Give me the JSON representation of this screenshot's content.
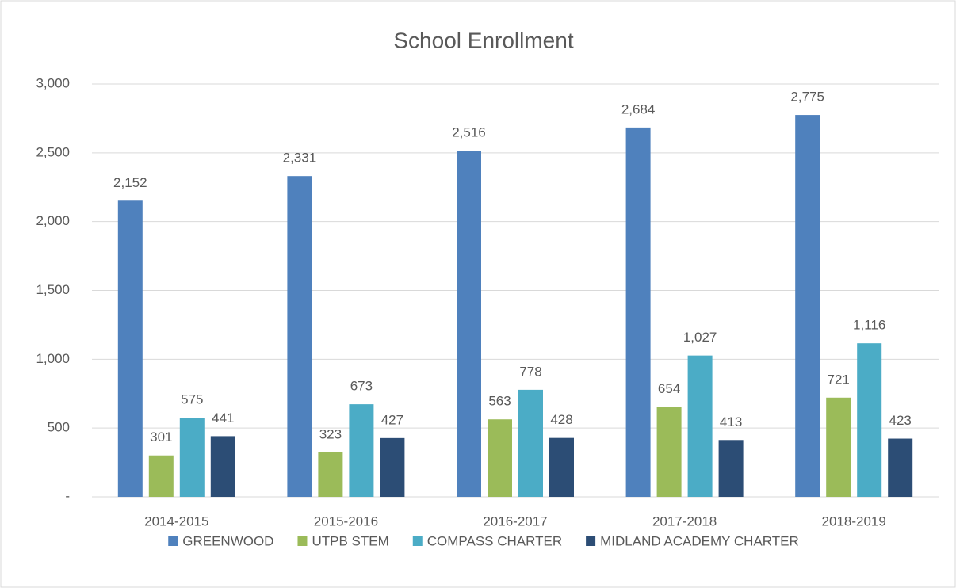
{
  "chart_data": {
    "type": "bar",
    "title": "School Enrollment",
    "categories": [
      "2014-2015",
      "2015-2016",
      "2016-2017",
      "2017-2018",
      "2018-2019"
    ],
    "series": [
      {
        "name": "GREENWOOD",
        "color": "#4f81bd",
        "values": [
          2152,
          2331,
          2516,
          2684,
          2775
        ],
        "value_labels": [
          "2,152",
          "2,331",
          "2,516",
          "2,684",
          "2,775"
        ]
      },
      {
        "name": "UTPB STEM",
        "color": "#9bbb59",
        "values": [
          301,
          323,
          563,
          654,
          721
        ]
      },
      {
        "name": "COMPASS CHARTER",
        "color": "#4bacc6",
        "values": [
          575,
          673,
          778,
          1027,
          1116
        ],
        "value_labels": [
          "575",
          "673",
          "778",
          "1,027",
          "1,116"
        ]
      },
      {
        "name": "MIDLAND ACADEMY CHARTER",
        "color": "#2c4d75",
        "values": [
          441,
          427,
          428,
          413,
          423
        ]
      }
    ],
    "ylim": [
      0,
      3000
    ],
    "yticks": [
      {
        "value": 0,
        "label": "-"
      },
      500,
      {
        "value": 1000,
        "label": "1,000"
      },
      {
        "value": 1500,
        "label": "1,500"
      },
      {
        "value": 2000,
        "label": "2,000"
      },
      {
        "value": 2500,
        "label": "2,500"
      },
      {
        "value": 3000,
        "label": "3,000"
      }
    ],
    "grid": true,
    "legend": "bottom"
  }
}
